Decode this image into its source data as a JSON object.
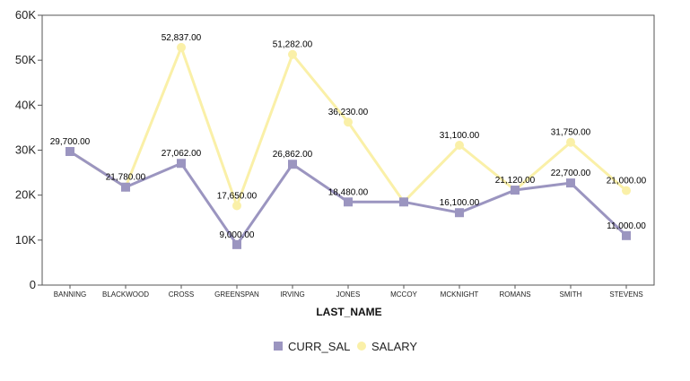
{
  "chart_data": {
    "type": "line",
    "title": "",
    "xlabel": "LAST_NAME",
    "ylabel": "",
    "ylim": [
      0,
      60000
    ],
    "y_ticks": [
      0,
      10000,
      20000,
      30000,
      40000,
      50000,
      60000
    ],
    "y_tick_labels": [
      "0",
      "10K",
      "20K",
      "30K",
      "40K",
      "50K",
      "60K"
    ],
    "grid": false,
    "legend_position": "bottom",
    "categories": [
      "BANNING",
      "BLACKWOOD",
      "CROSS",
      "GREENSPAN",
      "IRVING",
      "JONES",
      "MCCOY",
      "MCKNIGHT",
      "ROMANS",
      "SMITH",
      "STEVENS"
    ],
    "series": [
      {
        "name": "CURR_SAL",
        "color": "#9B95C0",
        "marker": "square",
        "values": [
          29700,
          21780,
          27062,
          9000,
          26862,
          18480,
          18480,
          16100,
          21120,
          22700,
          11000
        ],
        "labels": [
          "29,700.00",
          "21,780.00",
          "27,062.00",
          "9,000.00",
          "26,862.00",
          "18,480.00",
          "",
          "16,100.00",
          "21,120.00",
          "22,700.00",
          "11,000.00"
        ]
      },
      {
        "name": "SALARY",
        "color": "#FAF0A8",
        "marker": "circle",
        "values": [
          29700,
          21780,
          52837,
          17650,
          51282,
          36230,
          18480,
          31100,
          21120,
          31750,
          21000
        ],
        "labels": [
          "",
          "",
          "52,837.00",
          "17,650.00",
          "51,282.00",
          "36,230.00",
          "",
          "31,100.00",
          "",
          "31,750.00",
          "21,000.00"
        ]
      }
    ]
  }
}
